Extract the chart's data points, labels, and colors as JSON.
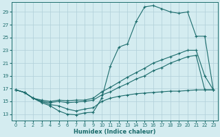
{
  "xlabel": "Humidex (Indice chaleur)",
  "bg_color": "#d4ecf0",
  "grid_color": "#b0cfd8",
  "line_color": "#1a6b6b",
  "x_ticks": [
    0,
    1,
    2,
    3,
    4,
    5,
    6,
    7,
    8,
    9,
    10,
    11,
    12,
    13,
    14,
    15,
    16,
    17,
    18,
    19,
    20,
    21,
    22,
    23
  ],
  "y_ticks": [
    13,
    15,
    17,
    19,
    21,
    23,
    25,
    27,
    29
  ],
  "xlim": [
    -0.5,
    23.5
  ],
  "ylim": [
    12.0,
    30.5
  ],
  "line1_x": [
    0,
    1,
    2,
    3,
    4,
    5,
    6,
    7,
    8,
    9,
    10,
    11,
    12,
    13,
    14,
    15,
    16,
    17,
    18,
    19,
    20,
    21,
    22,
    23
  ],
  "line1_y": [
    16.8,
    16.4,
    15.5,
    14.8,
    14.3,
    13.5,
    13.0,
    12.9,
    13.2,
    13.3,
    15.5,
    20.5,
    23.5,
    24.0,
    27.5,
    29.8,
    30.0,
    29.5,
    29.0,
    28.8,
    29.0,
    25.2,
    25.2,
    16.8
  ],
  "line2_x": [
    0,
    1,
    2,
    3,
    4,
    5,
    6,
    7,
    8,
    9,
    10,
    11,
    12,
    13,
    14,
    15,
    16,
    17,
    18,
    19,
    20,
    21,
    22,
    23
  ],
  "line2_y": [
    16.8,
    16.4,
    15.5,
    15.2,
    15.0,
    15.2,
    15.1,
    15.2,
    15.2,
    15.5,
    16.5,
    17.2,
    18.0,
    18.8,
    19.5,
    20.2,
    21.0,
    21.5,
    22.0,
    22.5,
    23.0,
    23.0,
    19.0,
    16.8
  ],
  "line3_x": [
    0,
    1,
    2,
    3,
    4,
    5,
    6,
    7,
    8,
    9,
    10,
    11,
    12,
    13,
    14,
    15,
    16,
    17,
    18,
    19,
    20,
    21,
    22,
    23
  ],
  "line3_y": [
    16.8,
    16.4,
    15.5,
    15.0,
    14.8,
    15.0,
    14.8,
    14.9,
    15.0,
    15.2,
    16.0,
    16.5,
    17.2,
    17.8,
    18.5,
    19.0,
    19.8,
    20.3,
    21.0,
    21.5,
    22.0,
    22.2,
    16.8,
    16.8
  ],
  "line4_x": [
    0,
    1,
    2,
    3,
    4,
    5,
    6,
    7,
    8,
    9,
    10,
    11,
    12,
    13,
    14,
    15,
    16,
    17,
    18,
    19,
    20,
    21,
    22,
    23
  ],
  "line4_y": [
    16.8,
    16.4,
    15.5,
    15.0,
    14.5,
    14.3,
    13.8,
    13.5,
    13.8,
    14.0,
    15.0,
    15.5,
    15.8,
    16.0,
    16.2,
    16.3,
    16.4,
    16.5,
    16.6,
    16.6,
    16.7,
    16.8,
    16.8,
    16.8
  ]
}
